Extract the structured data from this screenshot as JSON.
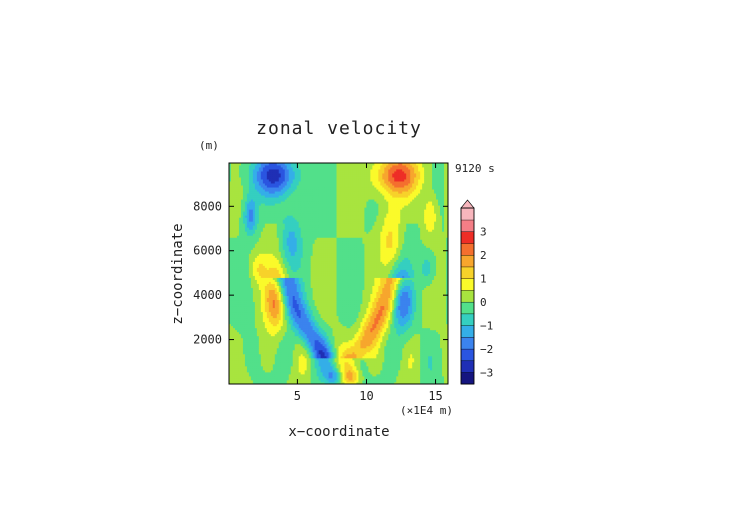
{
  "chart_data": {
    "type": "heatmap",
    "title": "zonal velocity",
    "xlabel": "x−coordinate",
    "ylabel": "z−coordinate",
    "y_unit": "(m)",
    "x_unit": "(×1E4 m)",
    "time_label": "9120 s",
    "xlim": [
      0.05,
      15.9
    ],
    "ylim": [
      0,
      9950
    ],
    "x_ticks": [
      {
        "value": 5,
        "label": "5"
      },
      {
        "value": 10,
        "label": "10"
      },
      {
        "value": 15,
        "label": "15"
      }
    ],
    "y_ticks": [
      {
        "value": 2000,
        "label": "2000"
      },
      {
        "value": 4000,
        "label": "4000"
      },
      {
        "value": 6000,
        "label": "6000"
      },
      {
        "value": 8000,
        "label": "8000"
      }
    ],
    "colorbar": {
      "levels": [
        -3.5,
        -3,
        -2.5,
        -2,
        -1.5,
        -1,
        -0.5,
        0,
        0.5,
        1,
        1.5,
        2,
        2.5,
        3,
        3.5
      ],
      "colors": [
        "#15157f",
        "#1f2fb5",
        "#2a55e0",
        "#3b83ee",
        "#34aee8",
        "#35cfc0",
        "#52e08a",
        "#a8e43f",
        "#fafa2a",
        "#f7d22a",
        "#f7a62d",
        "#f46f2e",
        "#ee2d26",
        "#f47e86",
        "#f8b6bd"
      ],
      "tick_labels": [
        {
          "value": 3,
          "label": "3"
        },
        {
          "value": 2,
          "label": "2"
        },
        {
          "value": 1,
          "label": "1"
        },
        {
          "value": 0,
          "label": "0"
        },
        {
          "value": -1,
          "label": "−1"
        },
        {
          "value": -2,
          "label": "−2"
        },
        {
          "value": -3,
          "label": "−3"
        }
      ],
      "extend_max": true
    }
  }
}
